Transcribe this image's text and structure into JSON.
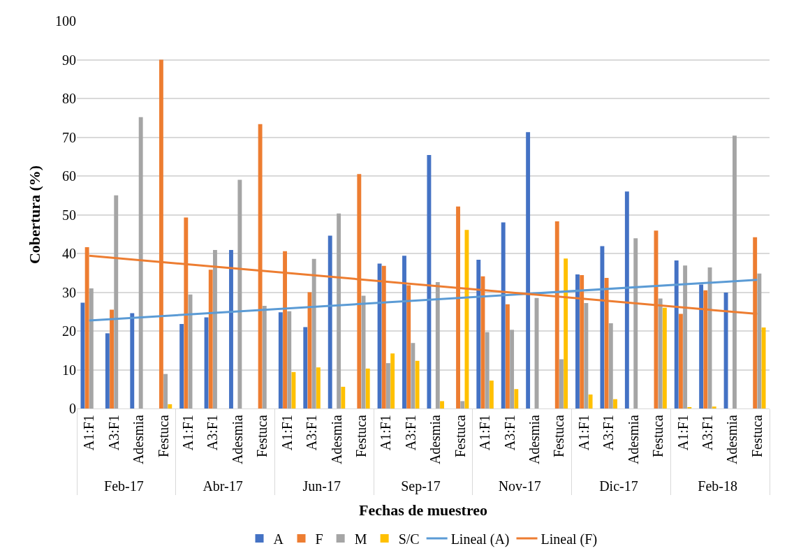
{
  "chart_data": {
    "type": "bar",
    "xlabel": "Fechas de muestreo",
    "ylabel": "Cobertura (%)",
    "categories": [
      "A1:F1",
      "A3:F1",
      "Adesmia",
      "Festuca",
      "A1:F1",
      "A3:F1",
      "Adesmia",
      "Festuca",
      "A1:F1",
      "A3:F1",
      "Adesmia",
      "Festuca",
      "A1:F1",
      "A3:F1",
      "Adesmia",
      "Festuca",
      "A1:F1",
      "A3:F1",
      "Adesmia",
      "Festuca",
      "A1:F1",
      "A3:F1",
      "Adesmia",
      "Festuca",
      "A1:F1",
      "A3:F1",
      "Adesmia",
      "Festuca"
    ],
    "annotations": [
      "Feb-17",
      "Abr-17",
      "Jun-17",
      "Sep-17",
      "Nov-17",
      "Dic-17",
      "Feb-18"
    ],
    "series": [
      {
        "name": "A",
        "color": "#4472c4",
        "values": [
          27.3,
          19.4,
          24.6,
          0,
          21.8,
          23.5,
          40.9,
          0,
          24.8,
          21,
          44.6,
          0,
          37.4,
          39.4,
          65.4,
          0,
          38.4,
          48,
          71.3,
          0,
          34.6,
          41.9,
          56,
          0,
          38.2,
          32,
          29.9,
          0
        ]
      },
      {
        "name": "F",
        "color": "#ed7d31",
        "values": [
          41.6,
          25.5,
          0,
          90,
          49.3,
          35.8,
          0,
          73.4,
          40.6,
          30,
          0,
          60.5,
          36.8,
          31.8,
          0,
          52.1,
          34.1,
          26.9,
          0,
          48.3,
          34.4,
          33.7,
          0,
          45.9,
          24.4,
          30.5,
          0,
          44.2
        ]
      },
      {
        "name": "M",
        "color": "#a5a5a5",
        "values": [
          31,
          55,
          75.2,
          8.9,
          29.4,
          40.9,
          59,
          26.5,
          25.1,
          38.6,
          50.3,
          29.1,
          11.7,
          16.9,
          32.6,
          1.9,
          19.7,
          20.3,
          28.5,
          12.7,
          27.2,
          22,
          43.9,
          28.4,
          36.9,
          36.4,
          70.4,
          34.8
        ]
      },
      {
        "name": "S/C",
        "color": "#ffc000",
        "values": [
          0,
          0,
          0,
          1.1,
          0,
          0,
          0,
          0,
          9.4,
          10.6,
          5.6,
          10.3,
          14.2,
          12.3,
          1.9,
          46.1,
          7.2,
          5,
          0,
          38.7,
          3.6,
          2.4,
          0,
          26,
          0.3,
          0.5,
          0,
          20.9
        ]
      },
      {
        "name": "Lineal (A)",
        "type": "line",
        "color": "#5b9bd5",
        "values": [
          22.7,
          null,
          null,
          null,
          null,
          null,
          null,
          null,
          null,
          null,
          null,
          null,
          null,
          null,
          null,
          null,
          null,
          null,
          null,
          null,
          null,
          null,
          null,
          null,
          null,
          null,
          null,
          33.2
        ]
      },
      {
        "name": "Lineal (F)",
        "type": "line",
        "color": "#ed7d31",
        "values": [
          39.4,
          null,
          null,
          null,
          null,
          null,
          null,
          null,
          null,
          null,
          null,
          null,
          null,
          null,
          null,
          null,
          null,
          null,
          null,
          null,
          null,
          null,
          null,
          null,
          null,
          null,
          null,
          24.4
        ]
      }
    ],
    "ylim": [
      0,
      100
    ],
    "yticks": [
      0,
      10,
      20,
      30,
      40,
      50,
      60,
      70,
      80,
      90,
      100
    ],
    "grid": "y",
    "legend": "bottom"
  }
}
